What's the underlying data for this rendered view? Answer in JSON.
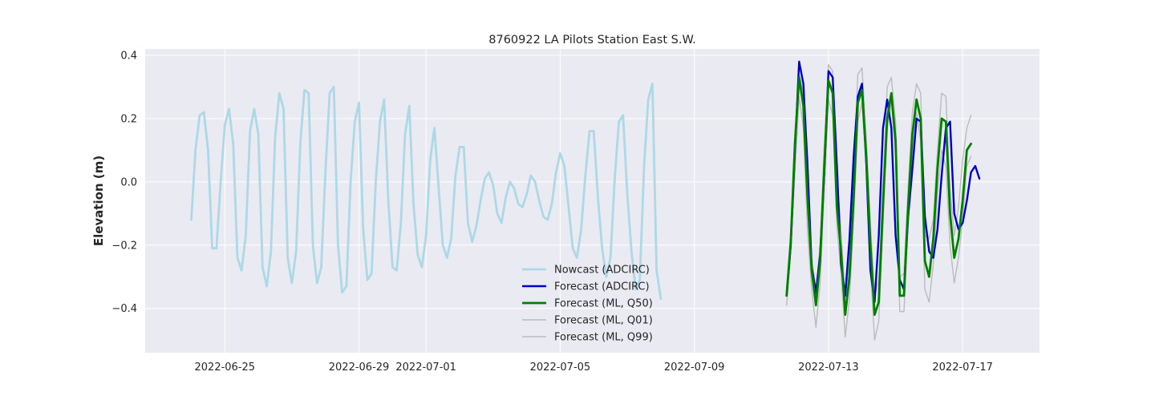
{
  "chart_data": {
    "type": "line",
    "title": "8760922 LA Pilots Station East S.W.",
    "xlabel": "",
    "ylabel": "Elevation (m)",
    "x_unit": "date",
    "xlim": [
      "2022-06-22T15:00",
      "2022-07-19T07:00"
    ],
    "ylim": [
      -0.54,
      0.42
    ],
    "xticks": [
      "2022-06-25",
      "2022-06-29",
      "2022-07-01",
      "2022-07-05",
      "2022-07-09",
      "2022-07-13",
      "2022-07-17"
    ],
    "yticks": [
      -0.4,
      -0.2,
      0.0,
      0.2,
      0.4
    ],
    "ytick_labels": [
      "−0.4",
      "−0.2",
      "0.0",
      "0.2",
      "0.4"
    ],
    "grid": true,
    "legend_position": "lower center",
    "series": [
      {
        "name": "Nowcast (ADCIRC)",
        "color": "#add8e6",
        "width": 2.8,
        "x0": "2022-06-24T00:00",
        "step_hours": 3,
        "values": [
          -0.12,
          0.1,
          0.21,
          0.22,
          0.1,
          -0.21,
          -0.21,
          0.0,
          0.18,
          0.23,
          0.12,
          -0.24,
          -0.28,
          -0.17,
          0.16,
          0.23,
          0.15,
          -0.27,
          -0.33,
          -0.22,
          0.14,
          0.28,
          0.23,
          -0.24,
          -0.32,
          -0.22,
          0.12,
          0.29,
          0.28,
          -0.2,
          -0.32,
          -0.27,
          0.03,
          0.28,
          0.3,
          -0.2,
          -0.35,
          -0.33,
          0.0,
          0.19,
          0.25,
          -0.15,
          -0.31,
          -0.29,
          0.0,
          0.19,
          0.26,
          -0.06,
          -0.27,
          -0.28,
          -0.13,
          0.15,
          0.24,
          -0.07,
          -0.23,
          -0.27,
          -0.17,
          0.07,
          0.17,
          -0.02,
          -0.2,
          -0.24,
          -0.18,
          0.02,
          0.11,
          0.11,
          -0.13,
          -0.19,
          -0.14,
          -0.06,
          0.01,
          0.03,
          -0.01,
          -0.1,
          -0.13,
          -0.05,
          0.0,
          -0.02,
          -0.07,
          -0.08,
          -0.04,
          0.02,
          0.0,
          -0.06,
          -0.11,
          -0.12,
          -0.07,
          0.03,
          0.09,
          0.05,
          -0.08,
          -0.21,
          -0.24,
          -0.15,
          0.02,
          0.16,
          0.16,
          -0.05,
          -0.21,
          -0.3,
          -0.24,
          0.01,
          0.19,
          0.21,
          -0.04,
          -0.22,
          -0.34,
          -0.31,
          0.05,
          0.26,
          0.31,
          -0.28,
          -0.37
        ]
      },
      {
        "name": "Forecast (ADCIRC)",
        "color": "#0000cd",
        "width": 2.4,
        "x0": "2022-07-11T18:00",
        "step_hours": 3,
        "values": [
          -0.36,
          -0.2,
          0.1,
          0.38,
          0.31,
          0.05,
          -0.27,
          -0.35,
          -0.23,
          0.03,
          0.35,
          0.33,
          0.05,
          -0.26,
          -0.36,
          -0.18,
          0.08,
          0.27,
          0.31,
          0.06,
          -0.28,
          -0.38,
          -0.17,
          0.17,
          0.26,
          0.17,
          -0.17,
          -0.31,
          -0.34,
          -0.11,
          0.04,
          0.2,
          0.19,
          -0.11,
          -0.22,
          -0.24,
          -0.15,
          0.02,
          0.17,
          0.19,
          -0.1,
          -0.15,
          -0.13,
          -0.06,
          0.03,
          0.05,
          0.01
        ]
      },
      {
        "name": "Forecast (ML, Q50)",
        "color": "#008000",
        "width": 2.8,
        "x0": "2022-07-11T18:00",
        "step_hours": 3,
        "values": [
          -0.36,
          -0.19,
          0.12,
          0.33,
          0.24,
          -0.05,
          -0.28,
          -0.39,
          -0.25,
          0.05,
          0.32,
          0.28,
          -0.08,
          -0.22,
          -0.42,
          -0.3,
          -0.05,
          0.25,
          0.29,
          0.08,
          -0.2,
          -0.42,
          -0.38,
          -0.07,
          0.2,
          0.28,
          0.13,
          -0.36,
          -0.36,
          -0.08,
          0.15,
          0.26,
          0.2,
          -0.25,
          -0.3,
          -0.18,
          0.04,
          0.2,
          0.19,
          -0.1,
          -0.24,
          -0.18,
          -0.06,
          0.1,
          0.12
        ]
      },
      {
        "name": "Forecast (ML, Q01)",
        "color": "#bbbbbb",
        "width": 1.4,
        "x0": "2022-07-11T18:00",
        "step_hours": 3,
        "values": [
          -0.39,
          -0.22,
          0.03,
          0.27,
          0.17,
          -0.16,
          -0.34,
          -0.46,
          -0.32,
          -0.02,
          0.26,
          0.21,
          -0.14,
          -0.29,
          -0.49,
          -0.37,
          -0.12,
          0.19,
          0.25,
          0.04,
          -0.27,
          -0.5,
          -0.44,
          -0.14,
          0.17,
          0.25,
          0.08,
          -0.41,
          -0.41,
          -0.14,
          0.1,
          0.22,
          0.13,
          -0.34,
          -0.38,
          -0.26,
          -0.04,
          0.1,
          0.05,
          -0.2,
          -0.32,
          -0.24,
          -0.12,
          0.05,
          0.08
        ]
      },
      {
        "name": "Forecast (ML, Q99)",
        "color": "#bbbbbb",
        "width": 1.4,
        "x0": "2022-07-11T18:00",
        "step_hours": 3,
        "values": [
          -0.34,
          -0.15,
          0.16,
          0.34,
          0.28,
          0.02,
          -0.24,
          -0.34,
          -0.2,
          0.12,
          0.37,
          0.35,
          0.03,
          -0.16,
          -0.37,
          -0.25,
          0.02,
          0.34,
          0.36,
          0.14,
          -0.13,
          -0.36,
          -0.31,
          -0.01,
          0.3,
          0.33,
          0.19,
          -0.3,
          -0.29,
          -0.02,
          0.22,
          0.31,
          0.28,
          -0.17,
          -0.18,
          -0.12,
          0.1,
          0.28,
          0.27,
          -0.02,
          -0.17,
          -0.08,
          0.07,
          0.17,
          0.21
        ]
      }
    ]
  },
  "colors": {
    "plot_background": "#eaeaf2",
    "grid": "#ffffff",
    "text": "#262626"
  }
}
